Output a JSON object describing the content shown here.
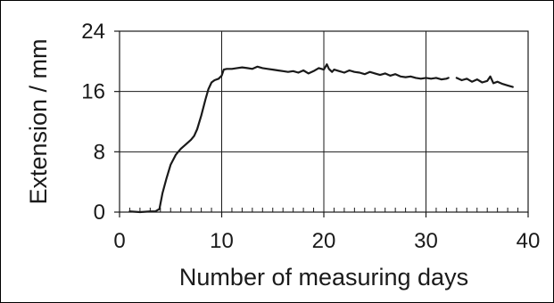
{
  "chart_data": {
    "type": "line",
    "title": "",
    "xlabel": "Number of measuring days",
    "ylabel": "Extension / mm",
    "xlim": [
      0,
      40
    ],
    "ylim": [
      0,
      24
    ],
    "x_ticks": [
      0,
      10,
      20,
      30,
      40
    ],
    "y_ticks": [
      0,
      8,
      16,
      24
    ],
    "x_tick_labels": [
      "0",
      "10",
      "20",
      "30",
      "40"
    ],
    "y_tick_labels": [
      "0",
      "8",
      "16",
      "24"
    ],
    "x_minor_step": 1,
    "grid": true,
    "legend": "none",
    "line_color": "#1a1a1a",
    "series": [
      {
        "segments": [
          {
            "x": [
              1.0,
              2.0,
              3.0,
              3.5,
              3.9,
              4.2,
              4.6,
              5.0,
              5.5,
              6.0,
              6.5,
              7.0,
              7.3,
              7.6,
              8.0,
              8.4,
              8.7,
              9.0,
              9.3,
              9.7,
              10.0,
              10.2,
              10.5,
              11.0,
              11.5,
              12.0,
              12.5,
              13.0,
              13.5,
              14.0,
              14.5,
              15.0,
              15.5,
              16.0,
              16.5,
              17.0,
              17.5,
              18.0,
              18.5,
              19.0,
              19.5,
              20.0,
              20.3,
              20.5,
              20.8,
              21.0,
              21.5,
              22.0,
              22.5,
              23.0,
              23.5,
              24.0,
              24.5,
              25.0,
              25.5,
              26.0,
              26.5,
              27.0,
              27.5,
              28.0,
              28.5,
              29.0,
              29.5,
              30.0,
              30.5,
              31.0,
              31.5,
              32.0,
              32.2
            ],
            "y": [
              0.1,
              0.0,
              0.1,
              0.1,
              0.4,
              2.5,
              4.5,
              6.3,
              7.6,
              8.4,
              9.0,
              9.6,
              10.1,
              11.0,
              12.8,
              14.9,
              16.3,
              17.2,
              17.5,
              17.7,
              18.1,
              18.9,
              19.0,
              19.0,
              19.1,
              19.2,
              19.1,
              19.0,
              19.3,
              19.1,
              19.0,
              18.9,
              18.8,
              18.7,
              18.6,
              18.7,
              18.5,
              18.8,
              18.4,
              18.7,
              19.1,
              18.9,
              19.6,
              19.0,
              18.6,
              18.9,
              18.7,
              18.5,
              18.8,
              18.6,
              18.5,
              18.3,
              18.6,
              18.4,
              18.2,
              18.4,
              18.1,
              18.3,
              18.0,
              17.9,
              18.0,
              17.8,
              17.7,
              17.8,
              17.7,
              17.8,
              17.6,
              17.7,
              17.8
            ]
          },
          {
            "x": [
              33.0,
              33.5,
              34.0,
              34.5,
              35.0,
              35.5,
              36.0,
              36.3,
              36.6,
              37.0,
              37.5,
              38.0,
              38.5
            ],
            "y": [
              17.8,
              17.5,
              17.7,
              17.3,
              17.6,
              17.2,
              17.4,
              18.0,
              17.1,
              17.3,
              17.0,
              16.8,
              16.6
            ]
          }
        ]
      }
    ]
  }
}
